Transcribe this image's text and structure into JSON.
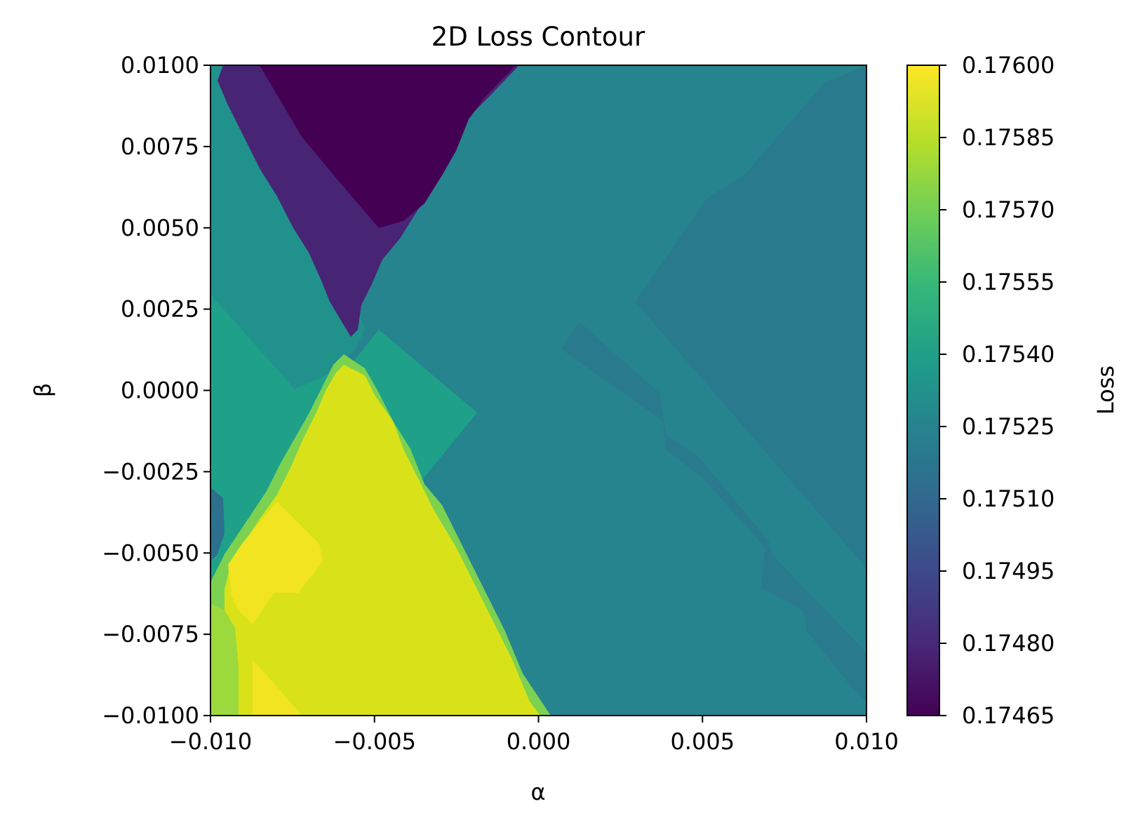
{
  "chart_data": {
    "type": "heatmap",
    "title": "2D Loss Contour",
    "xlabel": "α",
    "ylabel": "β",
    "xlim": [
      -0.01,
      0.01
    ],
    "ylim": [
      -0.01,
      0.01
    ],
    "xticks": [
      "−0.010",
      "−0.005",
      "0.000",
      "0.005",
      "0.010"
    ],
    "yticks": [
      "0.0100",
      "0.0075",
      "0.0050",
      "0.0025",
      "0.0000",
      "−0.0025",
      "−0.0050",
      "−0.0075",
      "−0.0100"
    ],
    "colorbar": {
      "label": "Loss",
      "range": [
        0.17465,
        0.176
      ],
      "ticks": [
        "0.17600",
        "0.17585",
        "0.17570",
        "0.17555",
        "0.17540",
        "0.17525",
        "0.17510",
        "0.17495",
        "0.17480",
        "0.17465"
      ],
      "colormap": "viridis",
      "levels": 30
    },
    "grid": false,
    "regions": [
      {
        "description_level": "low (purple) wedge at top-left",
        "value": 0.17468
      },
      {
        "description_level": "high (yellow) wedge at bottom-left",
        "value": 0.17592
      },
      {
        "description_level": "teal background",
        "value": 0.17528
      }
    ]
  },
  "colors": {
    "viridis": [
      "#440154",
      "#482878",
      "#3e4989",
      "#31688e",
      "#26828e",
      "#1f9e89",
      "#35b779",
      "#6ece58",
      "#b5de2b",
      "#fde725"
    ]
  }
}
